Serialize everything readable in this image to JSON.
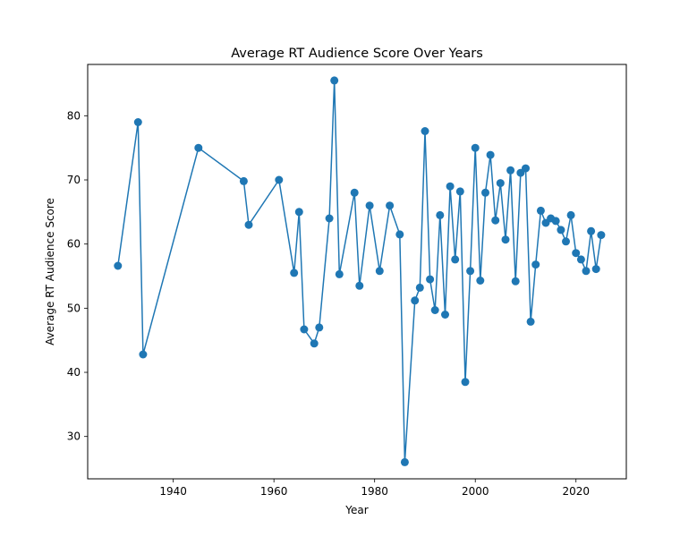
{
  "chart_data": {
    "type": "line",
    "title": "Average RT Audience Score Over Years",
    "xlabel": "Year",
    "ylabel": "Average RT Audience Score",
    "xlim": [
      1923,
      2030
    ],
    "ylim": [
      23.4,
      88.0
    ],
    "xticks": [
      1940,
      1960,
      1980,
      2000,
      2020
    ],
    "yticks": [
      30,
      40,
      50,
      60,
      70,
      80
    ],
    "grid": false,
    "line_color": "#1f77b4",
    "marker": "circle",
    "x": [
      1929,
      1933,
      1934,
      1945,
      1954,
      1955,
      1961,
      1964,
      1965,
      1966,
      1968,
      1969,
      1971,
      1972,
      1973,
      1976,
      1977,
      1979,
      1981,
      1983,
      1985,
      1986,
      1988,
      1989,
      1990,
      1991,
      1992,
      1993,
      1994,
      1995,
      1996,
      1997,
      1998,
      1999,
      2000,
      2001,
      2002,
      2003,
      2004,
      2005,
      2006,
      2007,
      2008,
      2009,
      2010,
      2011,
      2012,
      2013,
      2014,
      2015,
      2016,
      2017,
      2018,
      2019,
      2020,
      2021,
      2022,
      2023,
      2024,
      2025
    ],
    "y": [
      56.6,
      79.0,
      42.8,
      75.0,
      69.8,
      63.0,
      70.0,
      55.5,
      65.0,
      46.7,
      44.5,
      47.0,
      64.0,
      85.5,
      55.3,
      68.0,
      53.5,
      66.0,
      55.8,
      66.0,
      61.5,
      26.0,
      51.2,
      53.2,
      77.6,
      54.5,
      49.7,
      64.5,
      49.0,
      69.0,
      57.6,
      68.2,
      38.5,
      55.8,
      75.0,
      54.3,
      68.0,
      73.9,
      63.7,
      69.5,
      60.7,
      71.5,
      54.2,
      71.1,
      71.8,
      47.9,
      56.8,
      65.2,
      63.3,
      64.0,
      63.6,
      62.2,
      60.4,
      64.5,
      58.6,
      57.6,
      55.8,
      62.0,
      56.1,
      61.4
    ]
  }
}
